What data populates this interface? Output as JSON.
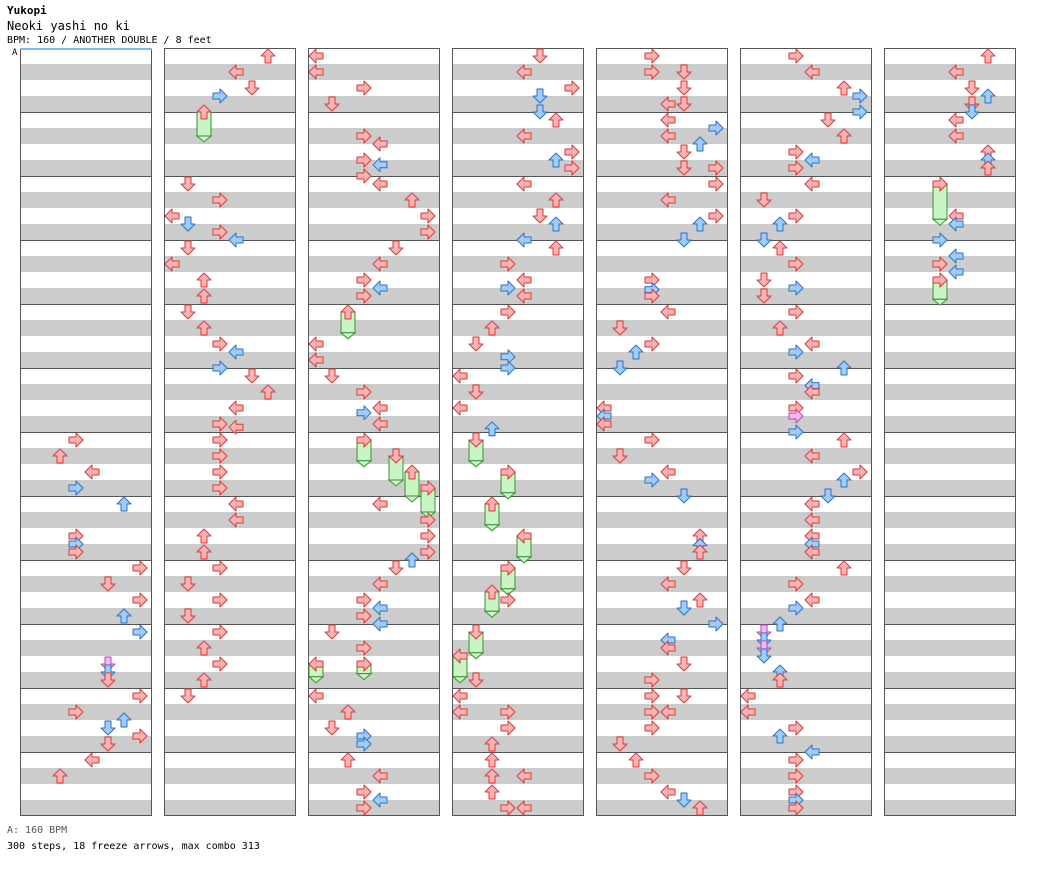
{
  "header": {
    "artist": "Yukopi",
    "song": "Neoki yashi no ki",
    "meta": "BPM: 160 / ANOTHER DOUBLE / 8 feet",
    "segment_marker": "A"
  },
  "footer": {
    "bpm_legend": "A: 160 BPM",
    "stats": "300 steps, 18 freeze arrows, max combo 313"
  },
  "colors": {
    "red_fill": "#ffb3b3",
    "red_stroke": "#d33a3a",
    "blue_fill": "#9ecdfd",
    "blue_stroke": "#2f6fb8",
    "green_fill": "#c9f5c4",
    "green_stroke": "#3a8f34",
    "pink_fill": "#f6b6f1",
    "pink_stroke": "#b24ab0",
    "band_gray": "#cccccc",
    "column_border": "#555555"
  },
  "notes": [
    {
      "c": 0,
      "r": 24,
      "l": 4
    },
    {
      "c": 0,
      "r": 25,
      "l": 3
    },
    {
      "c": 0,
      "r": 26,
      "l": 5
    },
    {
      "c": 0,
      "r": 27,
      "l": 4,
      "b": 1
    },
    {
      "c": 0,
      "r": 28,
      "l": 7,
      "b": 1
    },
    {
      "c": 0,
      "r": 30,
      "l": 4
    },
    {
      "c": 0,
      "r": 30.5,
      "l": 4,
      "b": 1
    },
    {
      "c": 0,
      "r": 31,
      "l": 4
    },
    {
      "c": 0,
      "r": 32,
      "l": 8
    },
    {
      "c": 0,
      "r": 33,
      "l": 6
    },
    {
      "c": 0,
      "r": 34,
      "l": 8
    },
    {
      "c": 0,
      "r": 35,
      "l": 7,
      "b": 1
    },
    {
      "c": 0,
      "r": 36,
      "l": 8,
      "b": 1
    },
    {
      "c": 0,
      "r": 38,
      "l": 6,
      "p": 1
    },
    {
      "c": 0,
      "r": 38.5,
      "l": 6,
      "b": 1
    },
    {
      "c": 0,
      "r": 39,
      "l": 6
    },
    {
      "c": 0,
      "r": 40,
      "l": 8
    },
    {
      "c": 0,
      "r": 41,
      "l": 4
    },
    {
      "c": 0,
      "r": 41.5,
      "l": 7,
      "b": 1
    },
    {
      "c": 0,
      "r": 42,
      "l": 6,
      "b": 1
    },
    {
      "c": 0,
      "r": 42.5,
      "l": 8
    },
    {
      "c": 0,
      "r": 43,
      "l": 6
    },
    {
      "c": 0,
      "r": 44,
      "l": 5
    },
    {
      "c": 0,
      "r": 45,
      "l": 3
    },
    {
      "c": 1,
      "r": 0,
      "l": 7
    },
    {
      "c": 1,
      "r": 1,
      "l": 5
    },
    {
      "c": 1,
      "r": 2,
      "l": 6
    },
    {
      "c": 1,
      "r": 2.5,
      "l": 4,
      "b": 1
    },
    {
      "c": 1,
      "r": 3.5,
      "l": 3,
      "f": 1.5
    },
    {
      "c": 1,
      "r": 8,
      "l": 2
    },
    {
      "c": 1,
      "r": 9,
      "l": 4
    },
    {
      "c": 1,
      "r": 10,
      "l": 1
    },
    {
      "c": 1,
      "r": 10.5,
      "l": 2,
      "b": 1
    },
    {
      "c": 1,
      "r": 11,
      "l": 4
    },
    {
      "c": 1,
      "r": 11.5,
      "l": 5,
      "b": 1
    },
    {
      "c": 1,
      "r": 12,
      "l": 2
    },
    {
      "c": 1,
      "r": 13,
      "l": 1
    },
    {
      "c": 1,
      "r": 14,
      "l": 3
    },
    {
      "c": 1,
      "r": 15,
      "l": 3
    },
    {
      "c": 1,
      "r": 16,
      "l": 2
    },
    {
      "c": 1,
      "r": 17,
      "l": 3
    },
    {
      "c": 1,
      "r": 18,
      "l": 4
    },
    {
      "c": 1,
      "r": 18.5,
      "l": 5,
      "b": 1
    },
    {
      "c": 1,
      "r": 19.5,
      "l": 4,
      "b": 1
    },
    {
      "c": 1,
      "r": 20,
      "l": 6
    },
    {
      "c": 1,
      "r": 21,
      "l": 7
    },
    {
      "c": 1,
      "r": 22,
      "l": 5
    },
    {
      "c": 1,
      "r": 23,
      "l": 4
    },
    {
      "c": 1,
      "r": 23.2,
      "l": 5
    },
    {
      "c": 1,
      "r": 24,
      "l": 4
    },
    {
      "c": 1,
      "r": 25,
      "l": 4
    },
    {
      "c": 1,
      "r": 26,
      "l": 4
    },
    {
      "c": 1,
      "r": 27,
      "l": 4
    },
    {
      "c": 1,
      "r": 28,
      "l": 5
    },
    {
      "c": 1,
      "r": 29,
      "l": 5
    },
    {
      "c": 1,
      "r": 30,
      "l": 3
    },
    {
      "c": 1,
      "r": 31,
      "l": 3
    },
    {
      "c": 1,
      "r": 32,
      "l": 4
    },
    {
      "c": 1,
      "r": 33,
      "l": 2
    },
    {
      "c": 1,
      "r": 34,
      "l": 4
    },
    {
      "c": 1,
      "r": 35,
      "l": 2
    },
    {
      "c": 1,
      "r": 36,
      "l": 4
    },
    {
      "c": 1,
      "r": 37,
      "l": 3
    },
    {
      "c": 1,
      "r": 38,
      "l": 4
    },
    {
      "c": 1,
      "r": 39,
      "l": 3
    },
    {
      "c": 1,
      "r": 40,
      "l": 2
    },
    {
      "c": 2,
      "r": 0,
      "l": 1
    },
    {
      "c": 2,
      "r": 1,
      "l": 1
    },
    {
      "c": 2,
      "r": 2,
      "l": 4
    },
    {
      "c": 2,
      "r": 3,
      "l": 2
    },
    {
      "c": 2,
      "r": 5,
      "l": 4
    },
    {
      "c": 2,
      "r": 5.5,
      "l": 5
    },
    {
      "c": 2,
      "r": 6.5,
      "l": 4
    },
    {
      "c": 2,
      "r": 6.8,
      "l": 5,
      "b": 1
    },
    {
      "c": 2,
      "r": 7.5,
      "l": 4
    },
    {
      "c": 2,
      "r": 8,
      "l": 5
    },
    {
      "c": 2,
      "r": 9,
      "l": 7
    },
    {
      "c": 2,
      "r": 10,
      "l": 8
    },
    {
      "c": 2,
      "r": 11,
      "l": 8
    },
    {
      "c": 2,
      "r": 12,
      "l": 6
    },
    {
      "c": 2,
      "r": 13,
      "l": 5
    },
    {
      "c": 2,
      "r": 14,
      "l": 4
    },
    {
      "c": 2,
      "r": 14.5,
      "l": 5,
      "b": 1
    },
    {
      "c": 2,
      "r": 15,
      "l": 4
    },
    {
      "c": 2,
      "r": 16,
      "l": 3,
      "f": 1.3
    },
    {
      "c": 2,
      "r": 18,
      "l": 1
    },
    {
      "c": 2,
      "r": 19,
      "l": 1
    },
    {
      "c": 2,
      "r": 20,
      "l": 2
    },
    {
      "c": 2,
      "r": 21,
      "l": 4
    },
    {
      "c": 2,
      "r": 22.3,
      "l": 4,
      "b": 1
    },
    {
      "c": 2,
      "r": 22,
      "l": 5
    },
    {
      "c": 2,
      "r": 23,
      "l": 5
    },
    {
      "c": 2,
      "r": 24,
      "l": 4,
      "f": 1.3
    },
    {
      "c": 2,
      "r": 25,
      "l": 6,
      "f": 1.5
    },
    {
      "c": 2,
      "r": 26,
      "l": 7,
      "f": 1.5
    },
    {
      "c": 2,
      "r": 27,
      "l": 8,
      "f": 1.5
    },
    {
      "c": 2,
      "r": 28,
      "l": 5
    },
    {
      "c": 2,
      "r": 29,
      "l": 8
    },
    {
      "c": 2,
      "r": 30,
      "l": 8
    },
    {
      "c": 2,
      "r": 31,
      "l": 8
    },
    {
      "c": 2,
      "r": 31.5,
      "l": 7,
      "b": 1
    },
    {
      "c": 2,
      "r": 32,
      "l": 6
    },
    {
      "c": 2,
      "r": 33,
      "l": 5
    },
    {
      "c": 2,
      "r": 34,
      "l": 4
    },
    {
      "c": 2,
      "r": 34.5,
      "l": 5,
      "b": 1
    },
    {
      "c": 2,
      "r": 35,
      "l": 4
    },
    {
      "c": 2,
      "r": 35.5,
      "l": 5,
      "b": 1
    },
    {
      "c": 2,
      "r": 36,
      "l": 2
    },
    {
      "c": 2,
      "r": 37,
      "l": 4
    },
    {
      "c": 2,
      "r": 38,
      "l": 1,
      "f": 0.8
    },
    {
      "c": 2,
      "r": 38,
      "l": 4,
      "f": 0.6
    },
    {
      "c": 2,
      "r": 40,
      "l": 1
    },
    {
      "c": 2,
      "r": 41,
      "l": 3
    },
    {
      "c": 2,
      "r": 42,
      "l": 2
    },
    {
      "c": 2,
      "r": 42.5,
      "l": 4,
      "b": 1
    },
    {
      "c": 2,
      "r": 43,
      "l": 4,
      "b": 1
    },
    {
      "c": 2,
      "r": 44,
      "l": 3
    },
    {
      "c": 2,
      "r": 45,
      "l": 5
    },
    {
      "c": 2,
      "r": 46,
      "l": 4
    },
    {
      "c": 2,
      "r": 46.5,
      "l": 5,
      "b": 1
    },
    {
      "c": 2,
      "r": 47,
      "l": 4
    },
    {
      "c": 3,
      "r": 0,
      "l": 6
    },
    {
      "c": 3,
      "r": 1,
      "l": 5
    },
    {
      "c": 3,
      "r": 2,
      "l": 8
    },
    {
      "c": 3,
      "r": 2.5,
      "l": 6,
      "b": 1
    },
    {
      "c": 3,
      "r": 3.5,
      "l": 6,
      "b": 1
    },
    {
      "c": 3,
      "r": 4,
      "l": 7
    },
    {
      "c": 3,
      "r": 5,
      "l": 5
    },
    {
      "c": 3,
      "r": 6,
      "l": 8
    },
    {
      "c": 3,
      "r": 6.5,
      "l": 7,
      "b": 1
    },
    {
      "c": 3,
      "r": 7,
      "l": 8
    },
    {
      "c": 3,
      "r": 8,
      "l": 5
    },
    {
      "c": 3,
      "r": 9,
      "l": 7
    },
    {
      "c": 3,
      "r": 10,
      "l": 6
    },
    {
      "c": 3,
      "r": 10.5,
      "l": 7,
      "b": 1
    },
    {
      "c": 3,
      "r": 11.5,
      "l": 5,
      "b": 1
    },
    {
      "c": 3,
      "r": 12,
      "l": 7
    },
    {
      "c": 3,
      "r": 13,
      "l": 4
    },
    {
      "c": 3,
      "r": 14,
      "l": 5
    },
    {
      "c": 3,
      "r": 14.5,
      "l": 4,
      "b": 1
    },
    {
      "c": 3,
      "r": 15,
      "l": 5
    },
    {
      "c": 3,
      "r": 16,
      "l": 4
    },
    {
      "c": 3,
      "r": 17,
      "l": 3
    },
    {
      "c": 3,
      "r": 18,
      "l": 2
    },
    {
      "c": 3,
      "r": 18.8,
      "l": 4,
      "b": 1
    },
    {
      "c": 3,
      "r": 19.5,
      "l": 4,
      "b": 1
    },
    {
      "c": 3,
      "r": 20,
      "l": 1
    },
    {
      "c": 3,
      "r": 21,
      "l": 2
    },
    {
      "c": 3,
      "r": 22,
      "l": 1
    },
    {
      "c": 3,
      "r": 23.3,
      "l": 3,
      "b": 1
    },
    {
      "c": 3,
      "r": 24,
      "l": 2,
      "f": 1.3
    },
    {
      "c": 3,
      "r": 26,
      "l": 4,
      "f": 1.3
    },
    {
      "c": 3,
      "r": 28,
      "l": 3,
      "f": 1.3
    },
    {
      "c": 3,
      "r": 30,
      "l": 5,
      "f": 1.3
    },
    {
      "c": 3,
      "r": 32,
      "l": 4,
      "f": 1.3
    },
    {
      "c": 3,
      "r": 33.5,
      "l": 3,
      "f": 1.2
    },
    {
      "c": 3,
      "r": 34,
      "l": 4
    },
    {
      "c": 3,
      "r": 36,
      "l": 2,
      "f": 1.3
    },
    {
      "c": 3,
      "r": 37.5,
      "l": 1,
      "f": 1.3
    },
    {
      "c": 3,
      "r": 39,
      "l": 2
    },
    {
      "c": 3,
      "r": 40,
      "l": 1
    },
    {
      "c": 3,
      "r": 41,
      "l": 1
    },
    {
      "c": 3,
      "r": 41,
      "l": 4
    },
    {
      "c": 3,
      "r": 42,
      "l": 4
    },
    {
      "c": 3,
      "r": 43,
      "l": 3
    },
    {
      "c": 3,
      "r": 44,
      "l": 3
    },
    {
      "c": 3,
      "r": 45,
      "l": 3
    },
    {
      "c": 3,
      "r": 45,
      "l": 5
    },
    {
      "c": 3,
      "r": 46,
      "l": 3
    },
    {
      "c": 3,
      "r": 47,
      "l": 4
    },
    {
      "c": 3,
      "r": 47,
      "l": 5
    },
    {
      "c": 4,
      "r": 0,
      "l": 4
    },
    {
      "c": 4,
      "r": 1,
      "l": 4
    },
    {
      "c": 4,
      "r": 1,
      "l": 6
    },
    {
      "c": 4,
      "r": 2,
      "l": 6
    },
    {
      "c": 4,
      "r": 3,
      "l": 5
    },
    {
      "c": 4,
      "r": 3,
      "l": 6
    },
    {
      "c": 4,
      "r": 4,
      "l": 5
    },
    {
      "c": 4,
      "r": 4.5,
      "l": 8,
      "b": 1
    },
    {
      "c": 4,
      "r": 5,
      "l": 5
    },
    {
      "c": 4,
      "r": 5.5,
      "l": 7,
      "b": 1
    },
    {
      "c": 4,
      "r": 6,
      "l": 6
    },
    {
      "c": 4,
      "r": 7,
      "l": 6
    },
    {
      "c": 4,
      "r": 7,
      "l": 8
    },
    {
      "c": 4,
      "r": 8,
      "l": 8
    },
    {
      "c": 4,
      "r": 9,
      "l": 5
    },
    {
      "c": 4,
      "r": 10,
      "l": 8
    },
    {
      "c": 4,
      "r": 10.5,
      "l": 7,
      "b": 1
    },
    {
      "c": 4,
      "r": 11.5,
      "l": 6,
      "b": 1
    },
    {
      "c": 4,
      "r": 14,
      "l": 4
    },
    {
      "c": 4,
      "r": 14.6,
      "l": 4,
      "b": 1
    },
    {
      "c": 4,
      "r": 15,
      "l": 4
    },
    {
      "c": 4,
      "r": 16,
      "l": 5
    },
    {
      "c": 4,
      "r": 17,
      "l": 2
    },
    {
      "c": 4,
      "r": 18,
      "l": 4
    },
    {
      "c": 4,
      "r": 18.5,
      "l": 3,
      "b": 1
    },
    {
      "c": 4,
      "r": 19.5,
      "l": 2,
      "b": 1
    },
    {
      "c": 4,
      "r": 22,
      "l": 1
    },
    {
      "c": 4,
      "r": 22.5,
      "l": 1,
      "b": 1
    },
    {
      "c": 4,
      "r": 23,
      "l": 1
    },
    {
      "c": 4,
      "r": 24,
      "l": 4
    },
    {
      "c": 4,
      "r": 25,
      "l": 2
    },
    {
      "c": 4,
      "r": 26,
      "l": 5
    },
    {
      "c": 4,
      "r": 26.5,
      "l": 4,
      "b": 1
    },
    {
      "c": 4,
      "r": 27.5,
      "l": 6,
      "b": 1
    },
    {
      "c": 4,
      "r": 30,
      "l": 7
    },
    {
      "c": 4,
      "r": 30.6,
      "l": 7,
      "b": 1
    },
    {
      "c": 4,
      "r": 31,
      "l": 7
    },
    {
      "c": 4,
      "r": 32,
      "l": 6
    },
    {
      "c": 4,
      "r": 33,
      "l": 5
    },
    {
      "c": 4,
      "r": 34,
      "l": 7
    },
    {
      "c": 4,
      "r": 34.5,
      "l": 6,
      "b": 1
    },
    {
      "c": 4,
      "r": 35.5,
      "l": 8,
      "b": 1
    },
    {
      "c": 4,
      "r": 36.5,
      "l": 5,
      "b": 1
    },
    {
      "c": 4,
      "r": 37,
      "l": 5
    },
    {
      "c": 4,
      "r": 38,
      "l": 6
    },
    {
      "c": 4,
      "r": 39,
      "l": 4
    },
    {
      "c": 4,
      "r": 40,
      "l": 4
    },
    {
      "c": 4,
      "r": 40,
      "l": 6
    },
    {
      "c": 4,
      "r": 41,
      "l": 4
    },
    {
      "c": 4,
      "r": 41,
      "l": 5
    },
    {
      "c": 4,
      "r": 42,
      "l": 4
    },
    {
      "c": 4,
      "r": 43,
      "l": 2
    },
    {
      "c": 4,
      "r": 44,
      "l": 3
    },
    {
      "c": 4,
      "r": 45,
      "l": 4
    },
    {
      "c": 4,
      "r": 46,
      "l": 5
    },
    {
      "c": 4,
      "r": 46.5,
      "l": 6,
      "b": 1
    },
    {
      "c": 4,
      "r": 47,
      "l": 7
    },
    {
      "c": 5,
      "r": 0,
      "l": 4
    },
    {
      "c": 5,
      "r": 1,
      "l": 5
    },
    {
      "c": 5,
      "r": 2,
      "l": 7
    },
    {
      "c": 5,
      "r": 2.5,
      "l": 8,
      "b": 1
    },
    {
      "c": 5,
      "r": 3.5,
      "l": 8,
      "b": 1
    },
    {
      "c": 5,
      "r": 4,
      "l": 6
    },
    {
      "c": 5,
      "r": 5,
      "l": 7
    },
    {
      "c": 5,
      "r": 6,
      "l": 4
    },
    {
      "c": 5,
      "r": 6.5,
      "l": 5,
      "b": 1
    },
    {
      "c": 5,
      "r": 7,
      "l": 4
    },
    {
      "c": 5,
      "r": 8,
      "l": 5
    },
    {
      "c": 5,
      "r": 9,
      "l": 2
    },
    {
      "c": 5,
      "r": 10,
      "l": 4
    },
    {
      "c": 5,
      "r": 10.5,
      "l": 3,
      "b": 1
    },
    {
      "c": 5,
      "r": 11.5,
      "l": 2,
      "b": 1
    },
    {
      "c": 5,
      "r": 12,
      "l": 3
    },
    {
      "c": 5,
      "r": 13,
      "l": 4
    },
    {
      "c": 5,
      "r": 14,
      "l": 2
    },
    {
      "c": 5,
      "r": 14.5,
      "l": 4,
      "b": 1
    },
    {
      "c": 5,
      "r": 15,
      "l": 2
    },
    {
      "c": 5,
      "r": 16,
      "l": 4
    },
    {
      "c": 5,
      "r": 17,
      "l": 3
    },
    {
      "c": 5,
      "r": 18,
      "l": 5
    },
    {
      "c": 5,
      "r": 18.5,
      "l": 4,
      "b": 1
    },
    {
      "c": 5,
      "r": 19.5,
      "l": 7,
      "b": 1
    },
    {
      "c": 5,
      "r": 20,
      "l": 4
    },
    {
      "c": 5,
      "r": 20.6,
      "l": 5,
      "b": 1
    },
    {
      "c": 5,
      "r": 21,
      "l": 5
    },
    {
      "c": 5,
      "r": 22,
      "l": 4
    },
    {
      "c": 5,
      "r": 22.5,
      "l": 4,
      "p": 1
    },
    {
      "c": 5,
      "r": 23.5,
      "l": 4,
      "b": 1
    },
    {
      "c": 5,
      "r": 24,
      "l": 7
    },
    {
      "c": 5,
      "r": 25,
      "l": 5
    },
    {
      "c": 5,
      "r": 26,
      "l": 8
    },
    {
      "c": 5,
      "r": 26.5,
      "l": 7,
      "b": 1
    },
    {
      "c": 5,
      "r": 27.5,
      "l": 6,
      "b": 1
    },
    {
      "c": 5,
      "r": 28,
      "l": 5
    },
    {
      "c": 5,
      "r": 29,
      "l": 5
    },
    {
      "c": 5,
      "r": 30,
      "l": 5
    },
    {
      "c": 5,
      "r": 30.5,
      "l": 5,
      "b": 1
    },
    {
      "c": 5,
      "r": 31,
      "l": 5
    },
    {
      "c": 5,
      "r": 32,
      "l": 7
    },
    {
      "c": 5,
      "r": 33,
      "l": 4
    },
    {
      "c": 5,
      "r": 34,
      "l": 5
    },
    {
      "c": 5,
      "r": 34.5,
      "l": 4,
      "b": 1
    },
    {
      "c": 5,
      "r": 35.5,
      "l": 3,
      "b": 1
    },
    {
      "c": 5,
      "r": 36,
      "l": 2,
      "p": 1
    },
    {
      "c": 5,
      "r": 36.5,
      "l": 2,
      "b": 1
    },
    {
      "c": 5,
      "r": 37,
      "l": 2,
      "p": 1
    },
    {
      "c": 5,
      "r": 37.5,
      "l": 2,
      "b": 1
    },
    {
      "c": 5,
      "r": 38.5,
      "l": 3,
      "b": 1
    },
    {
      "c": 5,
      "r": 39,
      "l": 3
    },
    {
      "c": 5,
      "r": 40,
      "l": 1
    },
    {
      "c": 5,
      "r": 41,
      "l": 1
    },
    {
      "c": 5,
      "r": 42,
      "l": 4
    },
    {
      "c": 5,
      "r": 42.5,
      "l": 3,
      "b": 1
    },
    {
      "c": 5,
      "r": 43.5,
      "l": 5,
      "b": 1
    },
    {
      "c": 5,
      "r": 44,
      "l": 4
    },
    {
      "c": 5,
      "r": 45,
      "l": 4
    },
    {
      "c": 5,
      "r": 46,
      "l": 4
    },
    {
      "c": 5,
      "r": 46.5,
      "l": 4,
      "b": 1
    },
    {
      "c": 5,
      "r": 47,
      "l": 4
    },
    {
      "c": 6,
      "r": 0,
      "l": 7
    },
    {
      "c": 6,
      "r": 1,
      "l": 5
    },
    {
      "c": 6,
      "r": 2,
      "l": 6
    },
    {
      "c": 6,
      "r": 2.5,
      "l": 7,
      "b": 1
    },
    {
      "c": 6,
      "r": 3,
      "l": 6
    },
    {
      "c": 6,
      "r": 3.5,
      "l": 6,
      "b": 1
    },
    {
      "c": 6,
      "r": 4,
      "l": 5
    },
    {
      "c": 6,
      "r": 5,
      "l": 5
    },
    {
      "c": 6,
      "r": 6,
      "l": 7
    },
    {
      "c": 6,
      "r": 6.5,
      "l": 7,
      "b": 1
    },
    {
      "c": 6,
      "r": 7,
      "l": 7
    },
    {
      "c": 6,
      "r": 8,
      "l": 4,
      "f": 2.2
    },
    {
      "c": 6,
      "r": 10,
      "l": 5
    },
    {
      "c": 6,
      "r": 10.5,
      "l": 5,
      "b": 1
    },
    {
      "c": 6,
      "r": 11.5,
      "l": 4,
      "b": 1
    },
    {
      "c": 6,
      "r": 12.5,
      "l": 5,
      "b": 1
    },
    {
      "c": 6,
      "r": 13,
      "l": 4
    },
    {
      "c": 6,
      "r": 13.5,
      "l": 5,
      "b": 1
    },
    {
      "c": 6,
      "r": 14,
      "l": 4,
      "f": 1.2
    }
  ]
}
